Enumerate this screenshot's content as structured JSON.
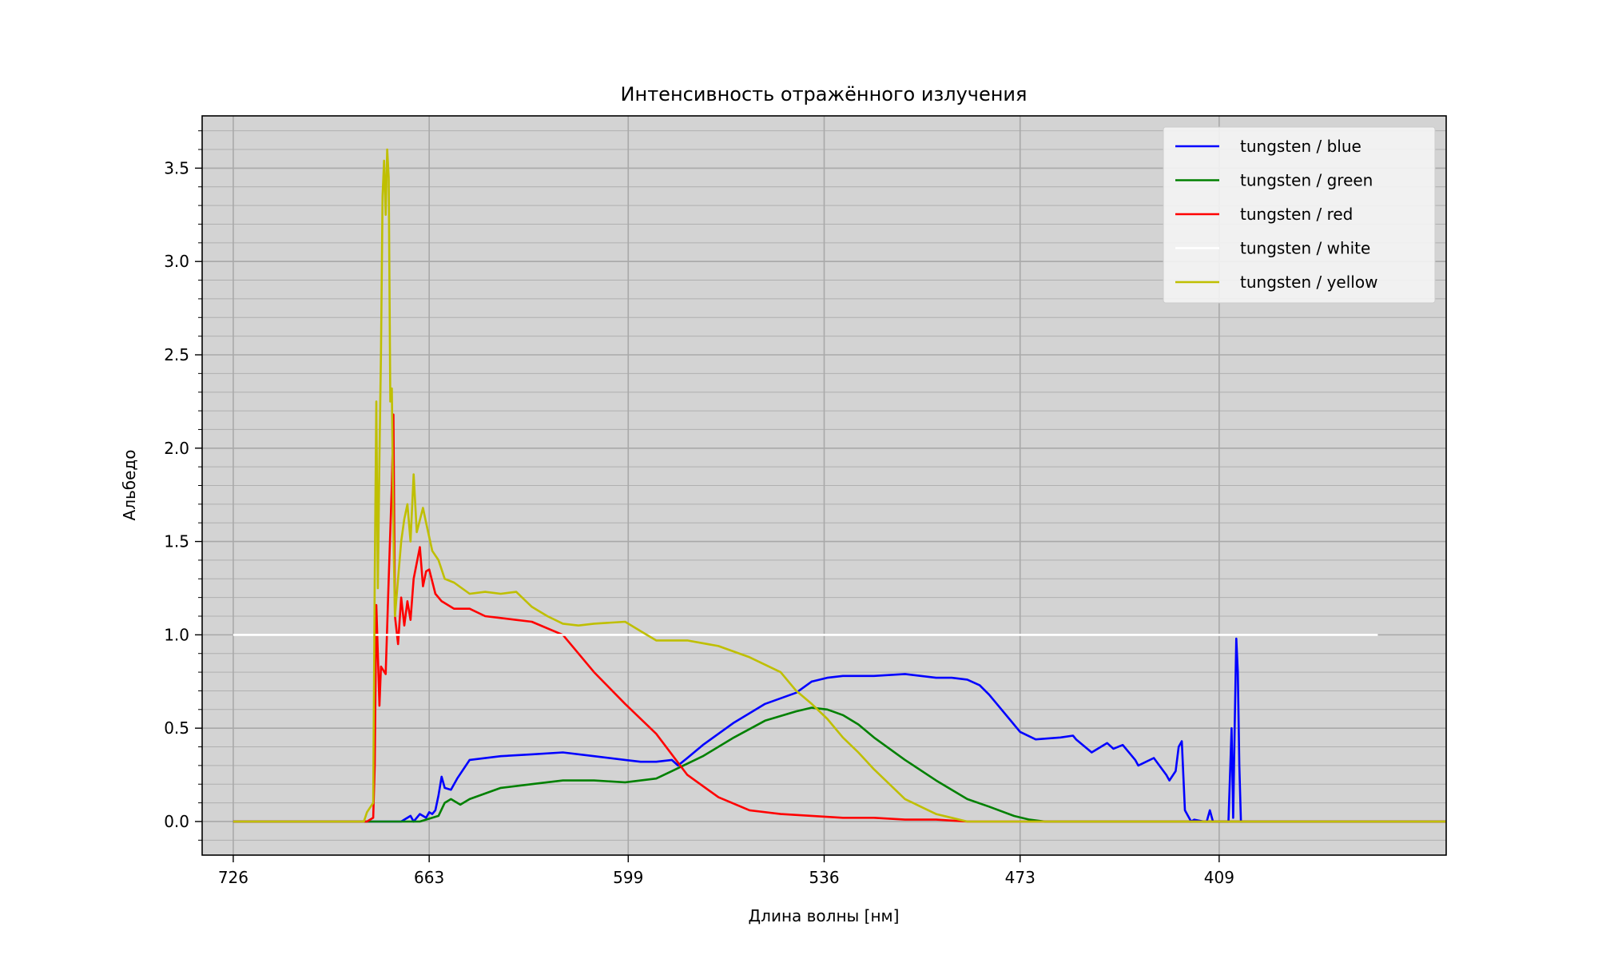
{
  "chart_data": {
    "type": "line",
    "title": "Интенсивность отражённого излучения",
    "xlabel": "Длина волны [нм]",
    "ylabel": "Альбедо",
    "xlim": [
      736,
      336
    ],
    "ylim": [
      -0.18,
      3.78
    ],
    "x_ticks": [
      {
        "value": 726,
        "label": "726"
      },
      {
        "value": 663,
        "label": "663"
      },
      {
        "value": 599,
        "label": "599"
      },
      {
        "value": 536,
        "label": "536"
      },
      {
        "value": 473,
        "label": "473"
      },
      {
        "value": 409,
        "label": "409"
      }
    ],
    "y_ticks": [
      {
        "value": 0.0,
        "label": "0.0"
      },
      {
        "value": 0.5,
        "label": "0.5"
      },
      {
        "value": 1.0,
        "label": "1.0"
      },
      {
        "value": 1.5,
        "label": "1.5"
      },
      {
        "value": 2.0,
        "label": "2.0"
      },
      {
        "value": 2.5,
        "label": "2.5"
      },
      {
        "value": 3.0,
        "label": "3.0"
      },
      {
        "value": 3.5,
        "label": "3.5"
      }
    ],
    "grid": true,
    "minor_grid": true,
    "background": "#d3d3d3",
    "legend_position": "top-right",
    "series": [
      {
        "name": "tungsten / blue",
        "color": "#0000ff",
        "x": [
          726,
          680,
          672,
          669,
          668,
          666,
          664,
          663,
          662,
          661,
          660,
          659,
          658,
          656,
          654,
          650,
          640,
          630,
          620,
          610,
          600,
          595,
          590,
          585,
          583,
          580,
          575,
          565,
          555,
          545,
          540,
          535,
          530,
          520,
          510,
          500,
          495,
          490,
          486,
          483,
          480,
          473,
          468,
          460,
          456,
          455,
          450,
          445,
          443,
          440,
          436,
          435,
          430,
          426,
          425,
          423,
          422,
          421,
          420,
          418,
          417,
          414,
          413,
          412,
          411,
          410,
          406,
          405,
          404.5,
          404,
          403.5,
          403,
          402.5,
          402,
          400,
          336
        ],
        "y": [
          0,
          0,
          0,
          0.03,
          0.0,
          0.04,
          0.02,
          0.05,
          0.04,
          0.06,
          0.14,
          0.24,
          0.18,
          0.17,
          0.23,
          0.33,
          0.35,
          0.36,
          0.37,
          0.35,
          0.33,
          0.32,
          0.32,
          0.33,
          0.3,
          0.34,
          0.41,
          0.53,
          0.63,
          0.69,
          0.75,
          0.77,
          0.78,
          0.78,
          0.79,
          0.77,
          0.77,
          0.76,
          0.73,
          0.68,
          0.62,
          0.48,
          0.44,
          0.45,
          0.46,
          0.44,
          0.37,
          0.42,
          0.39,
          0.41,
          0.33,
          0.3,
          0.34,
          0.25,
          0.22,
          0.27,
          0.4,
          0.43,
          0.06,
          0.0,
          0.01,
          0.0,
          0.0,
          0.06,
          0.0,
          0.0,
          0.0,
          0.5,
          0.02,
          0.51,
          0.98,
          0.8,
          0.3,
          0.0,
          0.0,
          0.0
        ]
      },
      {
        "name": "tungsten / green",
        "color": "#008000",
        "x": [
          726,
          666,
          660,
          658,
          656,
          653,
          650,
          640,
          630,
          620,
          610,
          600,
          595,
          590,
          585,
          575,
          565,
          555,
          545,
          540,
          535,
          530,
          525,
          520,
          510,
          500,
          490,
          483,
          475,
          470,
          465,
          460,
          336
        ],
        "y": [
          0,
          0,
          0.03,
          0.1,
          0.12,
          0.09,
          0.12,
          0.18,
          0.2,
          0.22,
          0.22,
          0.21,
          0.22,
          0.23,
          0.27,
          0.35,
          0.45,
          0.54,
          0.59,
          0.61,
          0.6,
          0.57,
          0.52,
          0.45,
          0.33,
          0.22,
          0.12,
          0.08,
          0.03,
          0.01,
          0.0,
          0.0,
          0.0
        ]
      },
      {
        "name": "tungsten / red",
        "color": "#ff0000",
        "x": [
          726,
          683,
          681,
          680.5,
          680,
          679,
          678.5,
          677,
          676,
          675,
          674.5,
          674,
          673,
          672,
          671,
          670,
          669,
          668,
          666,
          665,
          664,
          663,
          661,
          659,
          655,
          650,
          645,
          640,
          635,
          630,
          620,
          610,
          600,
          590,
          580,
          570,
          560,
          550,
          540,
          530,
          520,
          510,
          500,
          490,
          480,
          470,
          460,
          336
        ],
        "y": [
          0,
          0,
          0.02,
          0.3,
          1.16,
          0.62,
          0.83,
          0.79,
          1.3,
          1.8,
          2.18,
          1.1,
          0.95,
          1.2,
          1.05,
          1.18,
          1.08,
          1.3,
          1.47,
          1.26,
          1.34,
          1.35,
          1.22,
          1.18,
          1.14,
          1.14,
          1.1,
          1.09,
          1.08,
          1.07,
          1.0,
          0.8,
          0.63,
          0.47,
          0.25,
          0.13,
          0.06,
          0.04,
          0.03,
          0.02,
          0.02,
          0.01,
          0.01,
          0.0,
          0.0,
          0.0,
          0.0,
          0.0
        ]
      },
      {
        "name": "tungsten / white",
        "color": "#ffffff",
        "x": [
          726,
          358
        ],
        "y": [
          1.0,
          1.0
        ]
      },
      {
        "name": "tungsten / yellow",
        "color": "#bfbf00",
        "x": [
          726,
          684,
          683,
          681,
          680.5,
          680,
          679.5,
          679,
          678.5,
          678,
          677.5,
          677,
          676.5,
          676,
          675.5,
          675,
          674.5,
          674,
          673,
          672,
          671,
          670,
          669,
          668,
          667,
          665,
          664,
          662,
          660,
          658,
          655,
          650,
          645,
          640,
          635,
          630,
          625,
          620,
          615,
          610,
          600,
          595,
          590,
          585,
          580,
          570,
          560,
          550,
          545,
          540,
          535,
          530,
          525,
          520,
          515,
          510,
          505,
          500,
          495,
          490,
          485,
          480,
          475,
          470,
          460,
          336
        ],
        "y": [
          0,
          0,
          0.05,
          0.1,
          1.3,
          2.25,
          1.25,
          1.95,
          2.5,
          3.35,
          3.54,
          3.25,
          3.6,
          3.45,
          2.25,
          2.32,
          1.55,
          1.1,
          1.3,
          1.5,
          1.62,
          1.7,
          1.5,
          1.86,
          1.55,
          1.68,
          1.6,
          1.45,
          1.4,
          1.3,
          1.28,
          1.22,
          1.23,
          1.22,
          1.23,
          1.15,
          1.1,
          1.06,
          1.05,
          1.06,
          1.07,
          1.02,
          0.97,
          0.97,
          0.97,
          0.94,
          0.88,
          0.8,
          0.7,
          0.63,
          0.55,
          0.45,
          0.37,
          0.28,
          0.2,
          0.12,
          0.08,
          0.04,
          0.02,
          0.0,
          0.0,
          0.0,
          0.0,
          0.0,
          0.0,
          0.0
        ]
      }
    ]
  }
}
